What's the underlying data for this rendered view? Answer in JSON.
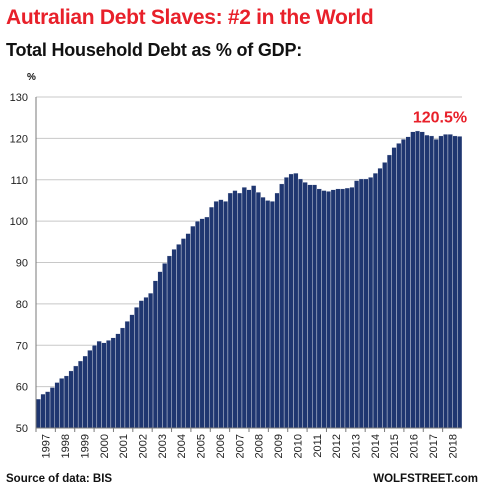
{
  "chart_data": {
    "type": "bar",
    "title": "Autralian Debt Slaves: #2 in the World",
    "subtitle": "Total Household Debt as % of GDP:",
    "ylabel": "%",
    "ylim": [
      50,
      130
    ],
    "yticks": [
      50,
      60,
      70,
      80,
      90,
      100,
      110,
      120,
      130
    ],
    "year_labels": [
      "1997",
      "1998",
      "1999",
      "2000",
      "2001",
      "2002",
      "2003",
      "2004",
      "2005",
      "2006",
      "2007",
      "2008",
      "2009",
      "2010",
      "2011",
      "2012",
      "2013",
      "2014",
      "2015",
      "2016",
      "2017",
      "2018"
    ],
    "annotation": "120.5%",
    "grid": true,
    "bar_color": "#1f3670",
    "annotation_color": "#e8202a",
    "values": [
      57.0,
      58.2,
      58.8,
      59.8,
      61.0,
      62.0,
      62.6,
      63.8,
      65.0,
      66.2,
      67.4,
      68.8,
      70.0,
      71.0,
      70.6,
      71.2,
      71.8,
      72.8,
      74.2,
      75.8,
      77.4,
      79.2,
      80.8,
      81.6,
      82.6,
      85.6,
      87.8,
      89.8,
      91.6,
      93.2,
      94.4,
      95.8,
      97.0,
      98.8,
      100.0,
      100.6,
      101.0,
      103.4,
      104.8,
      105.2,
      104.8,
      106.8,
      107.4,
      106.8,
      108.2,
      107.6,
      108.6,
      107.0,
      105.8,
      105.0,
      104.8,
      106.8,
      109.0,
      110.6,
      111.4,
      111.6,
      110.2,
      109.4,
      108.8,
      108.8,
      107.8,
      107.4,
      107.2,
      107.6,
      107.8,
      107.8,
      108.0,
      108.2,
      109.8,
      110.2,
      110.2,
      110.6,
      111.6,
      112.8,
      114.2,
      116.0,
      117.8,
      118.8,
      119.8,
      120.4,
      121.6,
      121.8,
      121.6,
      120.8,
      120.6,
      119.8,
      120.6,
      121.0,
      121.0,
      120.6,
      120.5
    ]
  },
  "footer": {
    "source": "Source of data: BIS",
    "brand": "WOLFSTREET.com"
  }
}
